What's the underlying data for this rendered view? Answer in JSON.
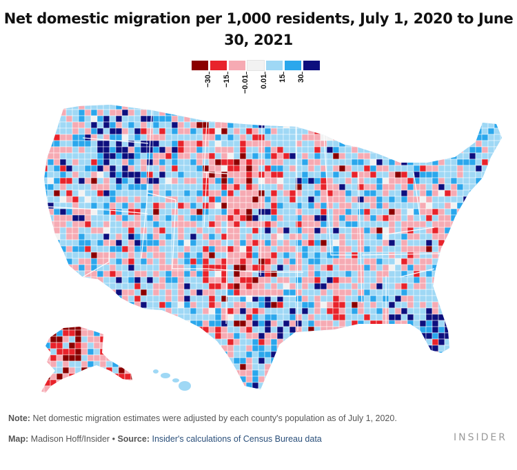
{
  "title": "Net domestic migration per 1,000 residents, July 1, 2020 to June 30, 2021",
  "legend": {
    "colors": [
      "#8b0000",
      "#e8232b",
      "#f6aab3",
      "#f2f2f2",
      "#9fd8f5",
      "#2ba7ec",
      "#0d0f7e"
    ],
    "labels": [
      "−30",
      "−15",
      "−0.01",
      "0.01",
      "15",
      "30"
    ]
  },
  "map": {
    "projection": "albers-usa",
    "region": "United States counties",
    "fill_by": "net domestic migration per 1,000 residents",
    "state_borders": "white",
    "county_borders": "white"
  },
  "note": {
    "label": "Note:",
    "text": "Net domestic migration estimates were adjusted by each county's population as of July 1, 2020."
  },
  "credit": {
    "map_label": "Map:",
    "map_author": "Madison Hoff/Insider",
    "bullet": "•",
    "source_label": "Source:",
    "source_text": "Insider's calculations of Census Bureau data"
  },
  "logo": "INSIDER"
}
